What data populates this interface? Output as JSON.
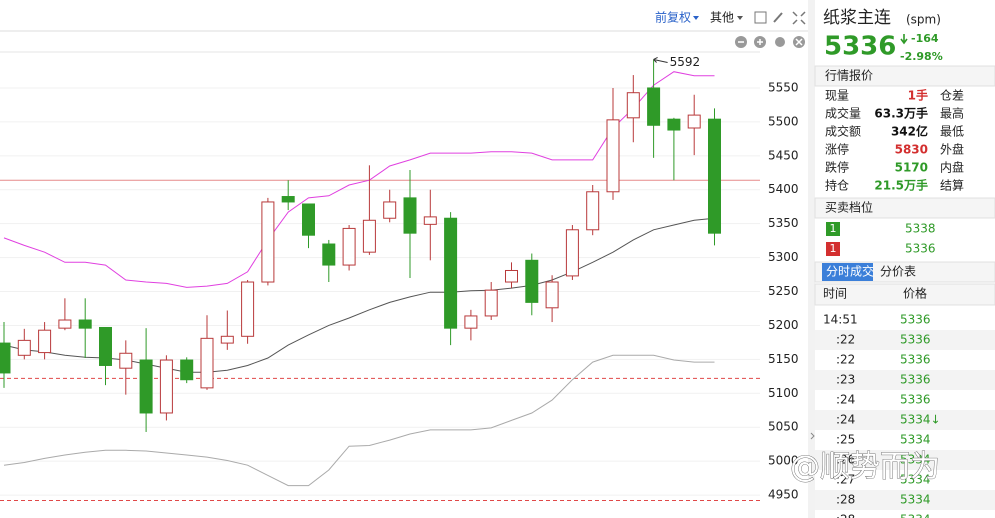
{
  "toolbar": {
    "adjust": "前复权",
    "other": "其他"
  },
  "chart_data": {
    "type": "candlestick",
    "categories": [
      null,
      null,
      null,
      null,
      null,
      null,
      null,
      null,
      null,
      null,
      null,
      null,
      null,
      null,
      null,
      null,
      null,
      null,
      null,
      null,
      null,
      null,
      null,
      null,
      null,
      null,
      null,
      null,
      null,
      null,
      null,
      null,
      null,
      null,
      null,
      null
    ],
    "open": [
      5174,
      5156,
      5160,
      5196,
      5208,
      5197,
      5137,
      5149,
      5071,
      5149,
      5108,
      5174,
      5184,
      5264,
      5390,
      5379,
      5320,
      5289,
      5308,
      5358,
      5388,
      5349,
      5358,
      5196,
      5214,
      5264,
      5296,
      5226,
      5273,
      5341,
      5397,
      5506,
      5550,
      5504,
      5491,
      5504
    ],
    "high": [
      5205,
      5195,
      5205,
      5240,
      5240,
      5197,
      5178,
      5196,
      5156,
      5153,
      5215,
      5222,
      5267,
      5388,
      5414,
      5379,
      5326,
      5348,
      5436,
      5400,
      5429,
      5400,
      5367,
      5223,
      5264,
      5293,
      5306,
      5274,
      5348,
      5407,
      5550,
      5569,
      5592,
      5506,
      5540,
      5520
    ],
    "low": [
      5108,
      5150,
      5150,
      5193,
      5152,
      5112,
      5098,
      5043,
      5060,
      5115,
      5105,
      5164,
      5173,
      5259,
      5370,
      5314,
      5264,
      5281,
      5304,
      5352,
      5270,
      5296,
      5171,
      5178,
      5208,
      5255,
      5215,
      5205,
      5267,
      5333,
      5385,
      5470,
      5447,
      5414,
      5451,
      5318
    ],
    "close": [
      5130,
      5178,
      5193,
      5208,
      5196,
      5141,
      5159,
      5071,
      5149,
      5120,
      5181,
      5184,
      5264,
      5382,
      5382,
      5333,
      5289,
      5343,
      5355,
      5382,
      5336,
      5360,
      5196,
      5214,
      5252,
      5281,
      5234,
      5264,
      5341,
      5397,
      5503,
      5543,
      5495,
      5488,
      5510,
      5336
    ],
    "up_color": "#b8393a",
    "down_color": "#2f9a28",
    "series": [
      {
        "color": "#e040e0",
        "values": [
          5329,
          5318,
          5308,
          5293,
          5293,
          5289,
          5267,
          5264,
          5262,
          5256,
          5258,
          5262,
          5279,
          5326,
          5367,
          5388,
          5391,
          5407,
          5414,
          5435,
          5444,
          5454,
          5454,
          5454,
          5456,
          5456,
          5454,
          5444,
          5444,
          5444,
          5491,
          5520,
          5554,
          5574,
          5568,
          5568
        ]
      },
      {
        "color": "#555555",
        "values": [
          5171,
          5164,
          5161,
          5156,
          5153,
          5152,
          5149,
          5143,
          5137,
          5131,
          5131,
          5134,
          5141,
          5152,
          5171,
          5186,
          5200,
          5211,
          5223,
          5234,
          5242,
          5249,
          5249,
          5251,
          5252,
          5255,
          5259,
          5267,
          5279,
          5293,
          5308,
          5326,
          5341,
          5348,
          5355,
          5358
        ]
      },
      {
        "color": "#aaaaaa",
        "values": [
          4994,
          4998,
          5004,
          5009,
          5013,
          5016,
          5016,
          5015,
          5012,
          5009,
          5006,
          5001,
          4994,
          4979,
          4964,
          4964,
          4987,
          5022,
          5023,
          5031,
          5040,
          5046,
          5046,
          5046,
          5049,
          5060,
          5071,
          5090,
          5120,
          5146,
          5156,
          5156,
          5156,
          5149,
          5146,
          5146
        ]
      }
    ],
    "hlines": [
      {
        "value": 5414,
        "color": "#e58a8a",
        "style": "solid"
      },
      {
        "value": 5122,
        "color": "#e04848",
        "style": "dashed"
      },
      {
        "value": 4942,
        "color": "#e04848",
        "style": "dashed"
      }
    ],
    "ylim": [
      4928,
      5603
    ],
    "yticks": [
      4950,
      5000,
      5050,
      5100,
      5150,
      5200,
      5250,
      5300,
      5350,
      5400,
      5450,
      5500,
      5550
    ],
    "grid": true,
    "max_label": true
  },
  "quote": {
    "name": "纸浆主连",
    "code": "(spm)",
    "price": 5336,
    "change": -164,
    "change_pct": "-2.98%",
    "color": "#2f9a28"
  },
  "quote_panel": {
    "title": "行情报价",
    "rows": [
      {
        "label": "现量",
        "value": "1手",
        "color": "#d32f2f",
        "label2": "仓差"
      },
      {
        "label": "成交量",
        "value": "63.3万手",
        "color": "#111111",
        "label2": "最高"
      },
      {
        "label": "成交额",
        "value": "342亿",
        "color": "#111111",
        "label2": "最低"
      },
      {
        "label": "涨停",
        "value": "5830",
        "color": "#d32f2f",
        "label2": "外盘"
      },
      {
        "label": "跌停",
        "value": "5170",
        "color": "#2f9a28",
        "label2": "内盘"
      },
      {
        "label": "持仓",
        "value": "21.5万手",
        "color": "#2f9a28",
        "label2": "结算"
      }
    ]
  },
  "depth": {
    "title": "买卖档位",
    "rows": [
      {
        "level": "1",
        "price": 5338,
        "color": "#2f9a28"
      },
      {
        "level": "1",
        "price": 5336,
        "color": "#d32f2f"
      }
    ]
  },
  "tabs": [
    "分时成交",
    "分价表"
  ],
  "trades": {
    "headers": [
      "时间",
      "价格"
    ],
    "rows": [
      [
        "14:51",
        "5336"
      ],
      [
        ":22",
        "5336"
      ],
      [
        ":22",
        "5336"
      ],
      [
        ":23",
        "5336"
      ],
      [
        ":24",
        "5336"
      ],
      [
        ":24",
        "5334↓"
      ],
      [
        ":25",
        "5334"
      ],
      [
        ":26",
        "5334"
      ],
      [
        ":27",
        "5334"
      ],
      [
        ":28",
        "5334"
      ],
      [
        ":28",
        "5334"
      ]
    ]
  },
  "watermark": "@顺势而为"
}
